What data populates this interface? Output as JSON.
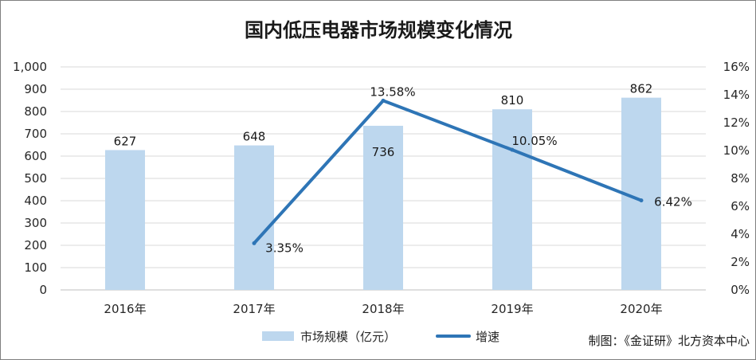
{
  "chart_data": {
    "type": "bar+line",
    "title": "国内低压电器市场规模变化情况",
    "categories": [
      "2016年",
      "2017年",
      "2018年",
      "2019年",
      "2020年"
    ],
    "series": [
      {
        "name": "市场规模（亿元）",
        "type": "bar",
        "axis": "left",
        "color": "#bdd7ee",
        "values": [
          627,
          648,
          736,
          810,
          862
        ],
        "labels": [
          "627",
          "648",
          "736",
          "810",
          "862"
        ]
      },
      {
        "name": "增速",
        "type": "line",
        "axis": "right",
        "color": "#2e75b6",
        "values": [
          null,
          3.35,
          13.58,
          10.05,
          6.42
        ],
        "labels": [
          "",
          "3.35%",
          "13.58%",
          "10.05%",
          "6.42%"
        ]
      }
    ],
    "y_left": {
      "min": 0,
      "max": 1000,
      "step": 100,
      "ticks": [
        "0",
        "100",
        "200",
        "300",
        "400",
        "500",
        "600",
        "700",
        "800",
        "900",
        "1,000"
      ]
    },
    "y_right": {
      "min": 0,
      "max": 16,
      "step": 2,
      "ticks": [
        "0%",
        "2%",
        "4%",
        "6%",
        "8%",
        "10%",
        "12%",
        "14%",
        "16%"
      ]
    },
    "grid": true,
    "legend_position": "bottom",
    "source": "制图：《金证研》北方资本中心"
  }
}
